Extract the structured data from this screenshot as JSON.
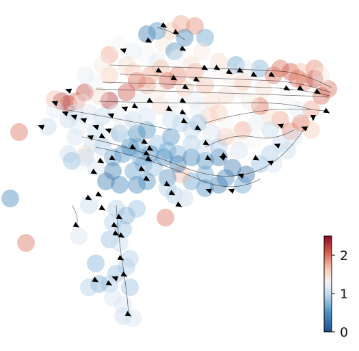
{
  "chart_data": {
    "type": "scatter",
    "overlay": "velocity-streamlines",
    "title": "",
    "xlabel": "",
    "ylabel": "",
    "axes_visible": false,
    "grid": false,
    "xlim": [
      0,
      525
    ],
    "ylim": [
      513,
      0
    ],
    "colormap": "RdBu_r",
    "colors": {
      "low": "#1f4e8c",
      "mid": "#f4f4f4",
      "high": "#8c0a22",
      "arrow": "#000000"
    },
    "colorbar": {
      "placement": "right-bottom",
      "range": [
        0,
        2.5
      ],
      "ticks": [
        {
          "value": 0,
          "label": "0"
        },
        {
          "value": 1,
          "label": "1"
        },
        {
          "value": 2,
          "label": "2"
        }
      ]
    },
    "points": [
      [
        28,
        193,
        2.0
      ],
      [
        38,
        355,
        2.0
      ],
      [
        15,
        290,
        0.4
      ],
      [
        242,
        318,
        2.0
      ],
      [
        90,
        148,
        2.3
      ],
      [
        100,
        152,
        2.2
      ],
      [
        124,
        135,
        2.2
      ],
      [
        112,
        148,
        2.0
      ],
      [
        80,
        145,
        1.7
      ],
      [
        160,
        147,
        2.3
      ],
      [
        160,
        80,
        1.8
      ],
      [
        185,
        135,
        2.1
      ],
      [
        200,
        118,
        2.1
      ],
      [
        215,
        125,
        1.9
      ],
      [
        245,
        118,
        2.1
      ],
      [
        260,
        110,
        1.9
      ],
      [
        285,
        105,
        1.8
      ],
      [
        300,
        125,
        1.7
      ],
      [
        310,
        148,
        1.5
      ],
      [
        330,
        140,
        1.5
      ],
      [
        350,
        130,
        1.4
      ],
      [
        345,
        95,
        0.6
      ],
      [
        375,
        110,
        1.3
      ],
      [
        380,
        100,
        0.7
      ],
      [
        400,
        110,
        2.0
      ],
      [
        410,
        100,
        2.0
      ],
      [
        425,
        105,
        2.1
      ],
      [
        445,
        120,
        1.9
      ],
      [
        460,
        115,
        2.2
      ],
      [
        480,
        130,
        2.0
      ],
      [
        470,
        140,
        2.0
      ],
      [
        455,
        160,
        1.8
      ],
      [
        440,
        180,
        2.0
      ],
      [
        425,
        192,
        1.9
      ],
      [
        410,
        175,
        1.8
      ],
      [
        395,
        170,
        1.5
      ],
      [
        380,
        155,
        2.0
      ],
      [
        365,
        148,
        1.4
      ],
      [
        355,
        190,
        1.8
      ],
      [
        330,
        200,
        1.7
      ],
      [
        305,
        170,
        1.6
      ],
      [
        290,
        160,
        1.2
      ],
      [
        280,
        190,
        1.0
      ],
      [
        265,
        180,
        0.9
      ],
      [
        250,
        200,
        0.5
      ],
      [
        215,
        80,
        1.3
      ],
      [
        230,
        90,
        1.2
      ],
      [
        240,
        65,
        1.4
      ],
      [
        250,
        45,
        1.6
      ],
      [
        265,
        35,
        1.8
      ],
      [
        285,
        38,
        1.9
      ],
      [
        300,
        55,
        0.6
      ],
      [
        270,
        55,
        0.4
      ],
      [
        255,
        75,
        0.5
      ],
      [
        215,
        50,
        0.3
      ],
      [
        230,
        45,
        0.5
      ],
      [
        175,
        65,
        1.3
      ],
      [
        195,
        75,
        1.2
      ],
      [
        185,
        95,
        1.5
      ],
      [
        160,
        110,
        1.6
      ],
      [
        140,
        120,
        1.3
      ],
      [
        150,
        95,
        1.4
      ],
      [
        170,
        165,
        1.2
      ],
      [
        150,
        170,
        1.0
      ],
      [
        130,
        165,
        1.1
      ],
      [
        110,
        165,
        1.0
      ],
      [
        115,
        185,
        1.2
      ],
      [
        140,
        190,
        1.0
      ],
      [
        160,
        200,
        1.2
      ],
      [
        175,
        195,
        0.7
      ],
      [
        200,
        195,
        0.4
      ],
      [
        215,
        190,
        0.5
      ],
      [
        230,
        210,
        0.8
      ],
      [
        245,
        220,
        0.6
      ],
      [
        260,
        225,
        0.7
      ],
      [
        280,
        230,
        0.4
      ],
      [
        300,
        235,
        0.5
      ],
      [
        320,
        230,
        0.3
      ],
      [
        340,
        245,
        0.3
      ],
      [
        360,
        255,
        0.2
      ],
      [
        380,
        240,
        0.8
      ],
      [
        395,
        225,
        0.9
      ],
      [
        410,
        210,
        1.0
      ],
      [
        430,
        200,
        1.1
      ],
      [
        300,
        255,
        0.6
      ],
      [
        320,
        270,
        0.3
      ],
      [
        300,
        275,
        0.5
      ],
      [
        280,
        265,
        0.6
      ],
      [
        265,
        255,
        1.7
      ],
      [
        245,
        260,
        0.5
      ],
      [
        255,
        285,
        0.9
      ],
      [
        270,
        290,
        1.0
      ],
      [
        190,
        215,
        0.4
      ],
      [
        180,
        225,
        0.5
      ],
      [
        165,
        230,
        0.6
      ],
      [
        150,
        215,
        0.9
      ],
      [
        135,
        210,
        1.0
      ],
      [
        125,
        225,
        1.5
      ],
      [
        115,
        240,
        1.3
      ],
      [
        100,
        225,
        1.0
      ],
      [
        105,
        235,
        0.8
      ],
      [
        155,
        265,
        0.3
      ],
      [
        175,
        270,
        0.4
      ],
      [
        200,
        270,
        0.4
      ],
      [
        195,
        250,
        0.6
      ],
      [
        210,
        240,
        0.7
      ],
      [
        225,
        245,
        0.8
      ],
      [
        240,
        230,
        0.5
      ],
      [
        170,
        305,
        0.9
      ],
      [
        185,
        315,
        0.7
      ],
      [
        200,
        305,
        0.8
      ],
      [
        165,
        325,
        0.9
      ],
      [
        180,
        335,
        0.8
      ],
      [
        160,
        350,
        0.8
      ],
      [
        175,
        355,
        1.0
      ],
      [
        190,
        378,
        0.9
      ],
      [
        185,
        390,
        0.9
      ],
      [
        170,
        400,
        0.8
      ],
      [
        190,
        420,
        0.8
      ],
      [
        160,
        415,
        0.9
      ],
      [
        145,
        415,
        0.7
      ],
      [
        130,
        420,
        0.9
      ],
      [
        165,
        435,
        1.1
      ],
      [
        180,
        445,
        1.1
      ],
      [
        195,
        465,
        1.1
      ],
      [
        180,
        462,
        1.0
      ],
      [
        140,
        385,
        0.7
      ],
      [
        115,
        345,
        1.1
      ],
      [
        130,
        300,
        1.0
      ],
      [
        80,
        160,
        1.2
      ],
      [
        70,
        185,
        1.0
      ],
      [
        125,
        110,
        1.2
      ],
      [
        295,
        75,
        1.4
      ],
      [
        320,
        90,
        1.5
      ],
      [
        310,
        110,
        1.3
      ],
      [
        355,
        120,
        1.6
      ],
      [
        385,
        130,
        1.5
      ],
      [
        420,
        140,
        1.3
      ],
      [
        435,
        160,
        1.2
      ],
      [
        395,
        190,
        1.0
      ],
      [
        370,
        205,
        1.3
      ],
      [
        350,
        220,
        1.1
      ],
      [
        330,
        185,
        1.3
      ],
      [
        310,
        195,
        1.1
      ],
      [
        270,
        130,
        1.6
      ],
      [
        230,
        135,
        1.4
      ],
      [
        205,
        150,
        1.2
      ],
      [
        235,
        155,
        1.5
      ],
      [
        255,
        150,
        1.3
      ],
      [
        285,
        145,
        1.2
      ],
      [
        280,
        210,
        0.9
      ],
      [
        300,
        215,
        1.0
      ],
      [
        320,
        215,
        0.9
      ],
      [
        260,
        240,
        0.3
      ],
      [
        220,
        225,
        0.4
      ],
      [
        205,
        230,
        0.6
      ],
      [
        215,
        265,
        0.5
      ],
      [
        165,
        250,
        0.3
      ],
      [
        140,
        245,
        1.1
      ],
      [
        125,
        230,
        1.0
      ],
      [
        110,
        200,
        1.1
      ],
      [
        120,
        150,
        1.3
      ],
      [
        100,
        175,
        1.0
      ],
      [
        180,
        180,
        1.2
      ],
      [
        195,
        175,
        1.0
      ],
      [
        215,
        170,
        1.1
      ],
      [
        460,
        100,
        1.9
      ],
      [
        470,
        110,
        1.4
      ],
      [
        440,
        105,
        1.7
      ],
      [
        435,
        115,
        2.0
      ],
      [
        360,
        100,
        1.2
      ],
      [
        335,
        110,
        1.4
      ],
      [
        220,
        110,
        1.8
      ],
      [
        195,
        105,
        1.6
      ],
      [
        260,
        85,
        1.3
      ],
      [
        280,
        95,
        1.5
      ],
      [
        265,
        290,
        1.2
      ],
      [
        245,
        275,
        0.9
      ],
      [
        345,
        200,
        1.4
      ],
      [
        375,
        180,
        1.2
      ],
      [
        420,
        220,
        1.0
      ],
      [
        455,
        190,
        1.6
      ],
      [
        400,
        240,
        1.1
      ],
      [
        355,
        270,
        0.6
      ],
      [
        330,
        260,
        0.4
      ],
      [
        235,
        100,
        1.7
      ],
      [
        145,
        140,
        1.5
      ],
      [
        210,
        140,
        1.3
      ],
      [
        320,
        165,
        1.6
      ],
      [
        250,
        175,
        1.0
      ],
      [
        290,
        180,
        0.8
      ],
      [
        200,
        215,
        0.6
      ]
    ],
    "arrows": [
      [
        240,
        38,
        30
      ],
      [
        258,
        48,
        30
      ],
      [
        268,
        72,
        30
      ],
      [
        218,
        60,
        30
      ],
      [
        180,
        73,
        200
      ],
      [
        233,
        104,
        30
      ],
      [
        255,
        115,
        30
      ],
      [
        272,
        128,
        30
      ],
      [
        288,
        117,
        30
      ],
      [
        300,
        100,
        30
      ],
      [
        318,
        100,
        30
      ],
      [
        336,
        106,
        30
      ],
      [
        352,
        104,
        30
      ],
      [
        372,
        110,
        30
      ],
      [
        398,
        110,
        30
      ],
      [
        420,
        130,
        30
      ],
      [
        440,
        130,
        30
      ],
      [
        465,
        135,
        30
      ],
      [
        478,
        163,
        30
      ],
      [
        458,
        172,
        90
      ],
      [
        445,
        187,
        200
      ],
      [
        410,
        183,
        200
      ],
      [
        405,
        212,
        200
      ],
      [
        395,
        237,
        200
      ],
      [
        352,
        256,
        200
      ],
      [
        338,
        278,
        200
      ],
      [
        305,
        278,
        200
      ],
      [
        325,
        230,
        200
      ],
      [
        302,
        210,
        30
      ],
      [
        290,
        188,
        30
      ],
      [
        270,
        178,
        30
      ],
      [
        268,
        165,
        30
      ],
      [
        268,
        148,
        30
      ],
      [
        248,
        160,
        30
      ],
      [
        220,
        148,
        30
      ],
      [
        198,
        156,
        30
      ],
      [
        182,
        158,
        200
      ],
      [
        162,
        168,
        200
      ],
      [
        158,
        190,
        200
      ],
      [
        140,
        185,
        200
      ],
      [
        122,
        175,
        200
      ],
      [
        108,
        170,
        200
      ],
      [
        95,
        165,
        200
      ],
      [
        100,
        132,
        200
      ],
      [
        80,
        150,
        200
      ],
      [
        60,
        185,
        200
      ],
      [
        132,
        200,
        200
      ],
      [
        150,
        200,
        30
      ],
      [
        195,
        216,
        30
      ],
      [
        212,
        208,
        30
      ],
      [
        215,
        225,
        30
      ],
      [
        208,
        248,
        30
      ],
      [
        218,
        233,
        30
      ],
      [
        215,
        262,
        30
      ],
      [
        252,
        283,
        30
      ],
      [
        245,
        270,
        30
      ],
      [
        262,
        300,
        30
      ],
      [
        148,
        236,
        30
      ],
      [
        165,
        232,
        30
      ],
      [
        138,
        252,
        30
      ],
      [
        145,
        285,
        30
      ],
      [
        130,
        290,
        30
      ],
      [
        150,
        305,
        30
      ],
      [
        175,
        318,
        30
      ],
      [
        168,
        330,
        30
      ],
      [
        170,
        342,
        30
      ],
      [
        178,
        345,
        30
      ],
      [
        177,
        378,
        30
      ],
      [
        168,
        406,
        200
      ],
      [
        182,
        402,
        30
      ],
      [
        140,
        410,
        30
      ],
      [
        160,
        415,
        30
      ],
      [
        188,
        460,
        30
      ],
      [
        112,
        330,
        30
      ],
      [
        220,
        218,
        30
      ],
      [
        375,
        232,
        30
      ],
      [
        328,
        228,
        30
      ],
      [
        305,
        232,
        30
      ]
    ]
  }
}
